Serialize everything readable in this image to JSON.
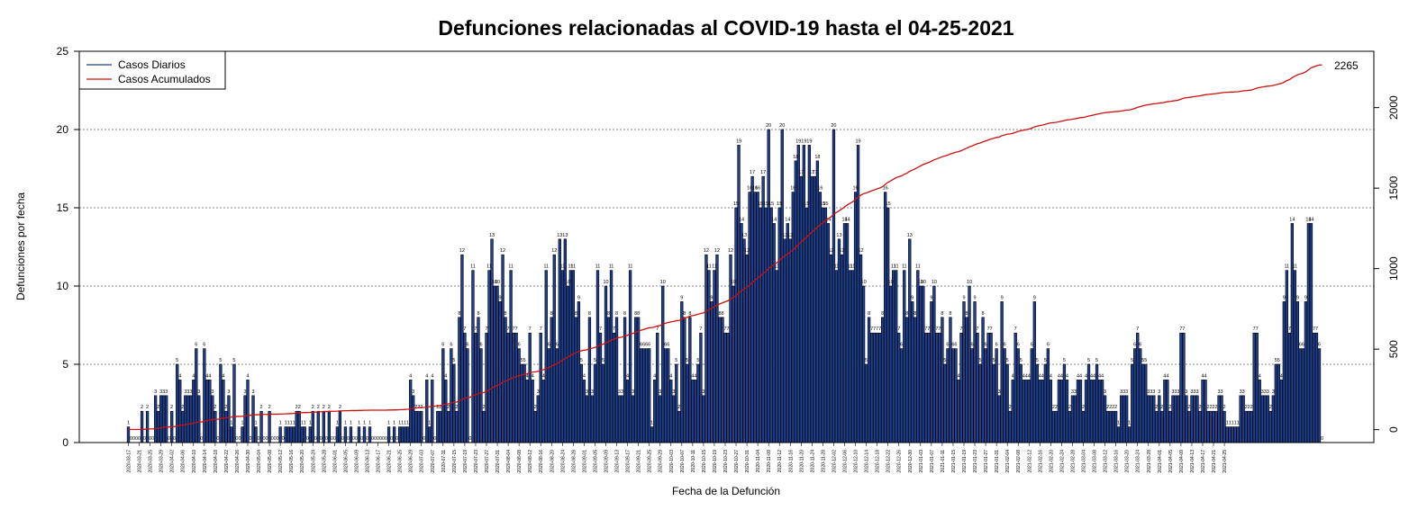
{
  "chart_data": {
    "type": "bar",
    "title": "Defunciones relacionadas al COVID-19 hasta el 04-25-2021",
    "xlabel": "Fecha de la Defunción",
    "ylabel": "Defunciones por fecha",
    "ylim": [
      0,
      25
    ],
    "y_ticks": [
      "0",
      "5",
      "10",
      "15",
      "20",
      "25"
    ],
    "y2lim": [
      -80,
      2350
    ],
    "y2_ticks": [
      "0",
      "500",
      "1000",
      "1500",
      "2000"
    ],
    "grid": "horizontal dotted at left-axis ticks",
    "legend_position": "top-left",
    "end_label": "2265",
    "x_start": "2020-03-17",
    "x_end": "2021-04-25",
    "x_tick_labels": [
      "2020-03-17",
      "2020-03-21",
      "2020-03-25",
      "2020-03-29",
      "2020-04-02",
      "2020-04-06",
      "2020-04-10",
      "2020-04-14",
      "2020-04-18",
      "2020-04-22",
      "2020-04-26",
      "2020-04-30",
      "2020-05-04",
      "2020-05-08",
      "2020-05-12",
      "2020-05-16",
      "2020-05-20",
      "2020-05-24",
      "2020-05-28",
      "2020-06-01",
      "2020-06-05",
      "2020-06-09",
      "2020-06-13",
      "2020-06-17",
      "2020-06-21",
      "2020-06-25",
      "2020-06-29",
      "2020-07-03",
      "2020-07-07",
      "2020-07-11",
      "2020-07-15",
      "2020-07-19",
      "2020-07-23",
      "2020-07-27",
      "2020-07-31",
      "2020-08-04",
      "2020-08-08",
      "2020-08-12",
      "2020-08-16",
      "2020-08-20",
      "2020-08-24",
      "2020-08-28",
      "2020-09-01",
      "2020-09-05",
      "2020-09-09",
      "2020-09-13",
      "2020-09-17",
      "2020-09-21",
      "2020-09-25",
      "2020-09-29",
      "2020-10-03",
      "2020-10-07",
      "2020-10-11",
      "2020-10-15",
      "2020-10-19",
      "2020-10-23",
      "2020-10-27",
      "2020-10-31",
      "2020-11-04",
      "2020-11-08",
      "2020-11-12",
      "2020-11-16",
      "2020-11-20",
      "2020-11-24",
      "2020-11-28",
      "2020-12-02",
      "2020-12-06",
      "2020-12-10",
      "2020-12-14",
      "2020-12-18",
      "2020-12-22",
      "2020-12-26",
      "2020-12-30",
      "2021-01-03",
      "2021-01-07",
      "2021-01-11",
      "2021-01-15",
      "2021-01-19",
      "2021-01-23",
      "2021-01-27",
      "2021-01-31",
      "2021-02-04",
      "2021-02-08",
      "2021-02-12",
      "2021-02-16",
      "2021-02-20",
      "2021-02-24",
      "2021-02-28",
      "2021-03-04",
      "2021-03-08",
      "2021-03-12",
      "2021-03-16",
      "2021-03-20",
      "2021-03-24",
      "2021-03-28",
      "2021-04-01",
      "2021-04-05",
      "2021-04-09",
      "2021-04-13",
      "2021-04-17",
      "2021-04-21",
      "2021-04-25"
    ],
    "series": [
      {
        "name": "Casos Diarios",
        "color": "#1f3f8f",
        "values": [
          1,
          0,
          0,
          0,
          0,
          2,
          0,
          2,
          0,
          0,
          3,
          2,
          3,
          3,
          3,
          0,
          2,
          0,
          5,
          4,
          2,
          3,
          3,
          3,
          4,
          6,
          3,
          0,
          6,
          4,
          4,
          3,
          2,
          0,
          5,
          4,
          2,
          3,
          1,
          5,
          0,
          0,
          1,
          3,
          4,
          0,
          3,
          1,
          0,
          2,
          0,
          0,
          2,
          0,
          0,
          0,
          1,
          0,
          1,
          1,
          1,
          1,
          2,
          2,
          1,
          1,
          0,
          1,
          2,
          0,
          2,
          0,
          2,
          0,
          2,
          0,
          0,
          1,
          2,
          0,
          1,
          0,
          1,
          0,
          0,
          1,
          0,
          1,
          0,
          1,
          0,
          0,
          0,
          0,
          0,
          0,
          1,
          0,
          1,
          0,
          1,
          1,
          1,
          1,
          4,
          3,
          2,
          2,
          2,
          0,
          4,
          1,
          4,
          0,
          2,
          2,
          6,
          4,
          2,
          6,
          5,
          2,
          8,
          12,
          7,
          6,
          0,
          11,
          7,
          8,
          6,
          2,
          7,
          11,
          13,
          10,
          10,
          9,
          12,
          8,
          7,
          11,
          7,
          7,
          6,
          5,
          5,
          4,
          7,
          4,
          2,
          3,
          7,
          4,
          11,
          6,
          8,
          12,
          6,
          13,
          11,
          13,
          10,
          11,
          11,
          8,
          9,
          5,
          4,
          3,
          8,
          3,
          5,
          11,
          7,
          5,
          10,
          8,
          11,
          7,
          8,
          3,
          3,
          8,
          4,
          11,
          3,
          8,
          8,
          6,
          6,
          6,
          6,
          1,
          4,
          7,
          3,
          10,
          6,
          6,
          4,
          3,
          5,
          2,
          9,
          8,
          5,
          8,
          4,
          4,
          5,
          7,
          3,
          12,
          11,
          9,
          11,
          12,
          8,
          8,
          7,
          7,
          12,
          10,
          15,
          19,
          14,
          13,
          12,
          16,
          17,
          16,
          16,
          15,
          17,
          15,
          20,
          15,
          14,
          11,
          15,
          20,
          13,
          14,
          13,
          16,
          18,
          19,
          17,
          19,
          15,
          19,
          17,
          17,
          18,
          16,
          15,
          15,
          14,
          12,
          20,
          11,
          13,
          12,
          14,
          14,
          11,
          11,
          16,
          19,
          12,
          10,
          5,
          8,
          7,
          7,
          7,
          7,
          8,
          16,
          15,
          10,
          11,
          11,
          7,
          6,
          11,
          8,
          13,
          9,
          8,
          11,
          10,
          10,
          7,
          7,
          9,
          10,
          7,
          7,
          8,
          5,
          6,
          8,
          6,
          6,
          4,
          7,
          9,
          8,
          10,
          6,
          9,
          7,
          5,
          8,
          6,
          7,
          7,
          5,
          6,
          3,
          9,
          6,
          5,
          2,
          4,
          7,
          6,
          5,
          4,
          4,
          4,
          6,
          9,
          5,
          4,
          4,
          5,
          6,
          4,
          2,
          2,
          4,
          4,
          5,
          4,
          2,
          3,
          3,
          4,
          4,
          2,
          4,
          5,
          4,
          4,
          5,
          4,
          4,
          3,
          2,
          2,
          2,
          2,
          1,
          3,
          3,
          3,
          1,
          5,
          6,
          7,
          6,
          5,
          5,
          3,
          3,
          3,
          2,
          3,
          2,
          4,
          4,
          2,
          3,
          3,
          3,
          7,
          7,
          3,
          2,
          3,
          3,
          3,
          2,
          4,
          4,
          2,
          2,
          2,
          2,
          3,
          3,
          2,
          1,
          1,
          1,
          1,
          1,
          3,
          3,
          2,
          2,
          2,
          7,
          7,
          4,
          3,
          3,
          3,
          2,
          3,
          5,
          5,
          4,
          9,
          11,
          7,
          14,
          11,
          9,
          6,
          6,
          9,
          14,
          14,
          7,
          7,
          6,
          0
        ]
      },
      {
        "name": "Casos Acumulados",
        "color": "#cc1111",
        "last_value": 2265
      }
    ]
  }
}
